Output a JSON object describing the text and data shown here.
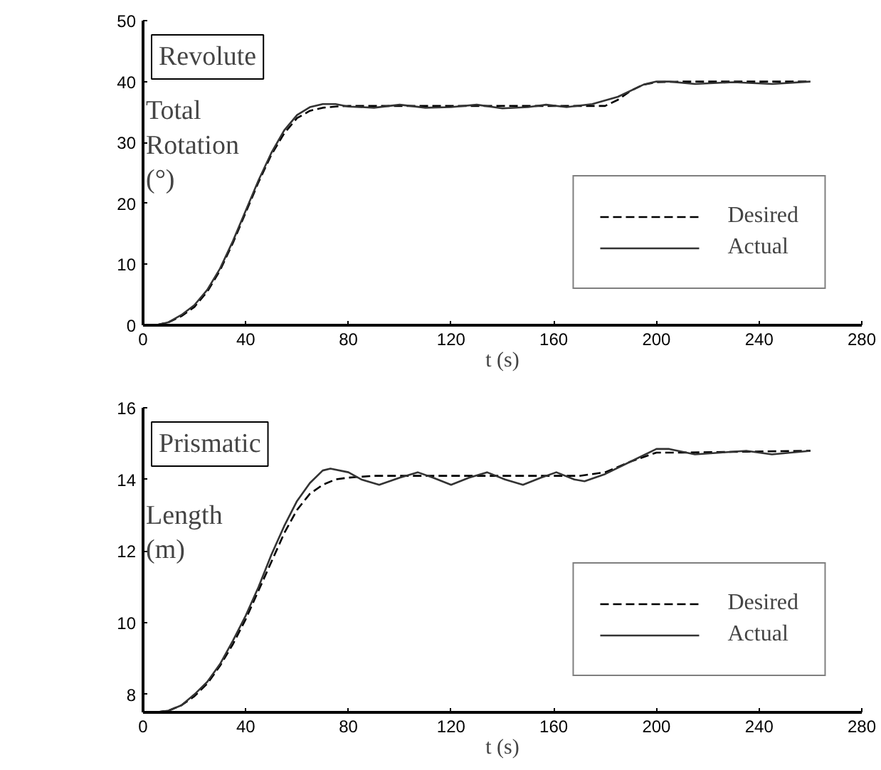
{
  "chart_data": [
    {
      "type": "line",
      "title": "Revolute",
      "xlabel": "t (s)",
      "ylabel": "Total Rotation (°)",
      "xlim": [
        0,
        280
      ],
      "xticks": [
        0,
        40,
        80,
        120,
        160,
        200,
        240,
        280
      ],
      "ylim": [
        0,
        50
      ],
      "yticks": [
        0,
        10,
        20,
        30,
        40,
        50
      ],
      "grid": false,
      "legend": "bottom right",
      "marker": "none",
      "series": [
        {
          "name": "Desired",
          "color": "#000000",
          "line_style": "dashed",
          "x": [
            0,
            5,
            10,
            15,
            20,
            25,
            30,
            35,
            40,
            45,
            50,
            55,
            60,
            65,
            70,
            75,
            80,
            100,
            120,
            140,
            160,
            180,
            185,
            190,
            195,
            200,
            210,
            260
          ],
          "values": [
            0,
            0,
            0.5,
            1.5,
            3,
            5.5,
            9,
            13.5,
            18.5,
            23.5,
            28,
            31.5,
            34,
            35.2,
            35.7,
            35.9,
            36,
            36,
            36,
            36,
            36,
            36,
            37,
            38.5,
            39.5,
            39.9,
            40,
            40
          ]
        },
        {
          "name": "Actual",
          "color": "#333333",
          "line_style": "solid",
          "x": [
            0,
            5,
            10,
            15,
            20,
            25,
            30,
            35,
            40,
            45,
            50,
            55,
            60,
            65,
            70,
            75,
            80,
            90,
            100,
            110,
            120,
            130,
            140,
            150,
            157,
            165,
            175,
            185,
            195,
            200,
            205,
            215,
            230,
            245,
            260
          ],
          "values": [
            0,
            0,
            0.5,
            1.7,
            3.3,
            5.8,
            9.3,
            13.8,
            18.8,
            23.8,
            28.3,
            32,
            34.5,
            35.8,
            36.3,
            36.3,
            35.9,
            35.7,
            36.2,
            35.7,
            35.8,
            36.2,
            35.6,
            35.8,
            36.2,
            35.8,
            36.3,
            37.5,
            39.5,
            40,
            40,
            39.6,
            39.9,
            39.6,
            40
          ]
        }
      ]
    },
    {
      "type": "line",
      "title": "Prismatic",
      "xlabel": "t (s)",
      "ylabel": "Length (m)",
      "xlim": [
        0,
        280
      ],
      "xticks": [
        0,
        40,
        80,
        120,
        160,
        200,
        240,
        280
      ],
      "ylim": [
        7.5,
        16
      ],
      "yticks": [
        8,
        10,
        12,
        14,
        16
      ],
      "grid": false,
      "legend": "bottom right",
      "marker": "none",
      "series": [
        {
          "name": "Desired",
          "color": "#000000",
          "line_style": "dashed",
          "x": [
            5,
            10,
            15,
            20,
            25,
            30,
            35,
            40,
            45,
            50,
            55,
            60,
            65,
            70,
            75,
            80,
            90,
            130,
            170,
            180,
            190,
            200,
            210,
            260
          ],
          "values": [
            7.5,
            7.55,
            7.7,
            7.95,
            8.3,
            8.8,
            9.4,
            10.1,
            10.9,
            11.7,
            12.5,
            13.15,
            13.6,
            13.85,
            14,
            14.05,
            14.1,
            14.1,
            14.1,
            14.2,
            14.5,
            14.75,
            14.75,
            14.8
          ]
        },
        {
          "name": "Actual",
          "color": "#333333",
          "line_style": "solid",
          "x": [
            5,
            10,
            15,
            20,
            25,
            30,
            35,
            40,
            45,
            50,
            55,
            60,
            65,
            70,
            73,
            80,
            85,
            92,
            100,
            107,
            113,
            120,
            127,
            134,
            141,
            148,
            155,
            161,
            168,
            172,
            180,
            190,
            200,
            205,
            215,
            225,
            235,
            245,
            260
          ],
          "values": [
            7.5,
            7.55,
            7.7,
            8.0,
            8.35,
            8.85,
            9.5,
            10.2,
            11.0,
            11.9,
            12.7,
            13.4,
            13.9,
            14.25,
            14.3,
            14.2,
            14.0,
            13.85,
            14.05,
            14.2,
            14.05,
            13.85,
            14.05,
            14.2,
            14.0,
            13.85,
            14.05,
            14.2,
            14.0,
            13.95,
            14.15,
            14.5,
            14.85,
            14.85,
            14.7,
            14.75,
            14.8,
            14.7,
            14.8
          ]
        }
      ]
    }
  ]
}
